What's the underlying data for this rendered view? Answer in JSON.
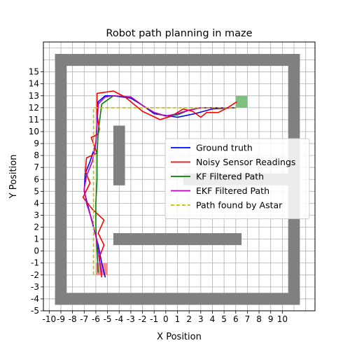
{
  "chart_data": {
    "type": "line",
    "title": "Robot path planning in maze",
    "xlabel": "X Position",
    "ylabel": "Y Position",
    "xlim": [
      -10.5,
      12.8
    ],
    "ylim": [
      -5,
      17.5
    ],
    "xticks": [
      -10,
      -9,
      -8,
      -7,
      -6,
      -5,
      -4,
      -3,
      -2,
      -1,
      0,
      1,
      2,
      3,
      4,
      5,
      6,
      7,
      8,
      9,
      10
    ],
    "yticks": [
      -5,
      -4,
      -3,
      -2,
      -1,
      0,
      1,
      2,
      3,
      4,
      5,
      6,
      7,
      8,
      9,
      10,
      11,
      12,
      13,
      14,
      15
    ],
    "grid": true,
    "legend_position": "center-right",
    "walls": [
      {
        "x0": -9.5,
        "x1": 11.5,
        "y0": 15.5,
        "y1": 16.5
      },
      {
        "x0": -9.5,
        "x1": 11.5,
        "y0": -4.5,
        "y1": -3.5
      },
      {
        "x0": -9.5,
        "x1": -8.5,
        "y0": -4.5,
        "y1": 16.5
      },
      {
        "x0": 10.5,
        "x1": 11.5,
        "y0": -4.5,
        "y1": 16.5
      },
      {
        "x0": -4.5,
        "x1": -3.5,
        "y0": 5.5,
        "y1": 10.5
      },
      {
        "x0": -4.5,
        "x1": 6.5,
        "y0": 0.5,
        "y1": 1.5
      },
      {
        "x0": 1.5,
        "x1": 10.5,
        "y0": 5.5,
        "y1": 6.5
      }
    ],
    "start": {
      "x": -5.5,
      "y": -1.5,
      "color": "#ff8c8c"
    },
    "goal": {
      "x": 6.5,
      "y": 12.5,
      "color": "#7fbf7f"
    },
    "series": [
      {
        "name": "Ground truth",
        "color": "#0000ff",
        "x": [
          -5.2,
          -5.5,
          -5.8,
          -6.2,
          -6.6,
          -7.0,
          -6.9,
          -6.5,
          -6.0,
          -5.9,
          -5.9,
          -5.8,
          -5.2,
          -4.5,
          -3.0,
          -2.0,
          -1.0,
          1.0,
          2.5,
          4.0,
          6.0
        ],
        "y": [
          -2.2,
          -1.0,
          0.5,
          2.0,
          3.5,
          5.0,
          6.5,
          7.5,
          9.0,
          10.5,
          12.0,
          12.5,
          13.0,
          13.0,
          12.8,
          12.2,
          11.5,
          11.2,
          11.5,
          11.9,
          12.0
        ]
      },
      {
        "name": "Noisy Sensor Readings",
        "color": "#ff0000",
        "x": [
          -5.5,
          -5.7,
          -5.3,
          -5.8,
          -5.3,
          -6.3,
          -7.1,
          -6.5,
          -6.9,
          -6.8,
          -5.9,
          -6.4,
          -5.8,
          -5.7,
          -5.9,
          -5.9,
          -4.5,
          -3.5,
          -2.0,
          -0.5,
          0.5,
          1.5,
          2.3,
          3.0,
          3.5,
          4.5,
          5.3,
          6.1
        ],
        "y": [
          -2.2,
          -0.5,
          0.5,
          1.5,
          2.6,
          3.5,
          4.5,
          5.7,
          6.7,
          7.8,
          8.2,
          9.5,
          9.8,
          10.2,
          11.5,
          13.2,
          13.4,
          12.9,
          11.7,
          11.0,
          11.3,
          11.9,
          11.7,
          11.2,
          11.6,
          11.6,
          12.0,
          12.5
        ]
      },
      {
        "name": "KF Filtered Path",
        "color": "#008000",
        "x": [
          -5.8,
          -5.9,
          -6.0,
          -6.0,
          -5.9,
          -5.9,
          -5.8,
          -5.5,
          -4.5,
          -3.0,
          -2.0,
          -1.0,
          0.0,
          1.0,
          2.0,
          3.0,
          4.0,
          5.0,
          6.0
        ],
        "y": [
          -1.8,
          0.0,
          2.0,
          4.0,
          6.0,
          8.0,
          10.0,
          12.3,
          13.0,
          12.9,
          12.2,
          11.6,
          11.3,
          11.4,
          11.8,
          12.0,
          12.0,
          12.0,
          12.0
        ]
      },
      {
        "name": "EKF Filtered Path",
        "color": "#bf00bf",
        "x": [
          -5.5,
          -5.7,
          -5.9,
          -6.3,
          -6.8,
          -7.0,
          -6.8,
          -6.3,
          -6.0,
          -5.9,
          -5.8,
          -5.2,
          -4.5,
          -3.0,
          -2.0,
          -1.0,
          0.0,
          1.0,
          2.0,
          3.0,
          4.0,
          5.0,
          5.8
        ],
        "y": [
          -1.8,
          -0.8,
          0.8,
          2.5,
          4.0,
          5.2,
          6.3,
          7.5,
          9.0,
          10.5,
          12.3,
          12.9,
          13.0,
          12.9,
          12.2,
          11.6,
          11.3,
          11.5,
          11.8,
          12.0,
          12.0,
          12.0,
          12.0
        ]
      },
      {
        "name": "Path found by Astar",
        "color": "#bfbf00",
        "dashed": true,
        "x": [
          -6.2,
          -6.2,
          -5.5,
          6.0
        ],
        "y": [
          -2.0,
          12.0,
          12.0,
          12.0
        ]
      }
    ]
  }
}
